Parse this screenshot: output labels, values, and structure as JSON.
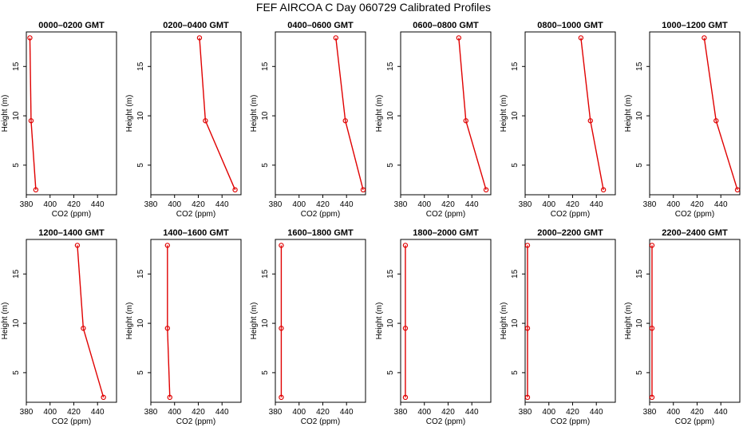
{
  "figure_title": "FEF AIRCOA C  Day 060729  Calibrated Profiles",
  "chart_data": [
    {
      "type": "line",
      "title": "0000–0200 GMT",
      "xlabel": "CO2 (ppm)",
      "ylabel": "Height (m)",
      "xlim": [
        380,
        456
      ],
      "ylim": [
        2,
        18.5
      ],
      "xticks": [
        380,
        400,
        420,
        440
      ],
      "yticks": [
        5,
        10,
        15
      ],
      "x": [
        383,
        384,
        388
      ],
      "y": [
        17.9,
        9.5,
        2.5
      ]
    },
    {
      "type": "line",
      "title": "0200–0400 GMT",
      "xlabel": "CO2 (ppm)",
      "ylabel": "Height (m)",
      "xlim": [
        380,
        456
      ],
      "ylim": [
        2,
        18.5
      ],
      "xticks": [
        380,
        400,
        420,
        440
      ],
      "yticks": [
        5,
        10,
        15
      ],
      "x": [
        421,
        426,
        451
      ],
      "y": [
        17.9,
        9.5,
        2.5
      ]
    },
    {
      "type": "line",
      "title": "0400–0600 GMT",
      "xlabel": "CO2 (ppm)",
      "ylabel": "Height (m)",
      "xlim": [
        380,
        456
      ],
      "ylim": [
        2,
        18.5
      ],
      "xticks": [
        380,
        400,
        420,
        440
      ],
      "yticks": [
        5,
        10,
        15
      ],
      "x": [
        431,
        439,
        454
      ],
      "y": [
        17.9,
        9.5,
        2.5
      ]
    },
    {
      "type": "line",
      "title": "0600–0800 GMT",
      "xlabel": "CO2 (ppm)",
      "ylabel": "Height (m)",
      "xlim": [
        380,
        456
      ],
      "ylim": [
        2,
        18.5
      ],
      "xticks": [
        380,
        400,
        420,
        440
      ],
      "yticks": [
        5,
        10,
        15
      ],
      "x": [
        429,
        435,
        452
      ],
      "y": [
        17.9,
        9.5,
        2.5
      ]
    },
    {
      "type": "line",
      "title": "0800–1000 GMT",
      "xlabel": "CO2 (ppm)",
      "ylabel": "Height (m)",
      "xlim": [
        380,
        456
      ],
      "ylim": [
        2,
        18.5
      ],
      "xticks": [
        380,
        400,
        420,
        440
      ],
      "yticks": [
        5,
        10,
        15
      ],
      "x": [
        427,
        435,
        446
      ],
      "y": [
        17.9,
        9.5,
        2.5
      ]
    },
    {
      "type": "line",
      "title": "1000–1200 GMT",
      "xlabel": "CO2 (ppm)",
      "ylabel": "Height (m)",
      "xlim": [
        380,
        456
      ],
      "ylim": [
        2,
        18.5
      ],
      "xticks": [
        380,
        400,
        420,
        440
      ],
      "yticks": [
        5,
        10,
        15
      ],
      "x": [
        426,
        436,
        454
      ],
      "y": [
        17.9,
        9.5,
        2.5
      ]
    },
    {
      "type": "line",
      "title": "1200–1400 GMT",
      "xlabel": "CO2 (ppm)",
      "ylabel": "Height (m)",
      "xlim": [
        380,
        456
      ],
      "ylim": [
        2,
        18.5
      ],
      "xticks": [
        380,
        400,
        420,
        440
      ],
      "yticks": [
        5,
        10,
        15
      ],
      "x": [
        423,
        428,
        445
      ],
      "y": [
        17.9,
        9.5,
        2.5
      ]
    },
    {
      "type": "line",
      "title": "1400–1600 GMT",
      "xlabel": "CO2 (ppm)",
      "ylabel": "Height (m)",
      "xlim": [
        380,
        456
      ],
      "ylim": [
        2,
        18.5
      ],
      "xticks": [
        380,
        400,
        420,
        440
      ],
      "yticks": [
        5,
        10,
        15
      ],
      "x": [
        394,
        394,
        396
      ],
      "y": [
        17.9,
        9.5,
        2.5
      ]
    },
    {
      "type": "line",
      "title": "1600–1800 GMT",
      "xlabel": "CO2 (ppm)",
      "ylabel": "Height (m)",
      "xlim": [
        380,
        456
      ],
      "ylim": [
        2,
        18.5
      ],
      "xticks": [
        380,
        400,
        420,
        440
      ],
      "yticks": [
        5,
        10,
        15
      ],
      "x": [
        385,
        385,
        385
      ],
      "y": [
        17.9,
        9.5,
        2.5
      ]
    },
    {
      "type": "line",
      "title": "1800–2000 GMT",
      "xlabel": "CO2 (ppm)",
      "ylabel": "Height (m)",
      "xlim": [
        380,
        456
      ],
      "ylim": [
        2,
        18.5
      ],
      "xticks": [
        380,
        400,
        420,
        440
      ],
      "yticks": [
        5,
        10,
        15
      ],
      "x": [
        384,
        384,
        384
      ],
      "y": [
        17.9,
        9.5,
        2.5
      ]
    },
    {
      "type": "line",
      "title": "2000–2200 GMT",
      "xlabel": "CO2 (ppm)",
      "ylabel": "Height (m)",
      "xlim": [
        380,
        456
      ],
      "ylim": [
        2,
        18.5
      ],
      "xticks": [
        380,
        400,
        420,
        440
      ],
      "yticks": [
        5,
        10,
        15
      ],
      "x": [
        382,
        382,
        382
      ],
      "y": [
        17.9,
        9.5,
        2.5
      ]
    },
    {
      "type": "line",
      "title": "2200–2400 GMT",
      "xlabel": "CO2 (ppm)",
      "ylabel": "Height (m)",
      "xlim": [
        380,
        456
      ],
      "ylim": [
        2,
        18.5
      ],
      "xticks": [
        380,
        400,
        420,
        440
      ],
      "yticks": [
        5,
        10,
        15
      ],
      "x": [
        382,
        382,
        382
      ],
      "y": [
        17.9,
        9.5,
        2.5
      ]
    }
  ]
}
